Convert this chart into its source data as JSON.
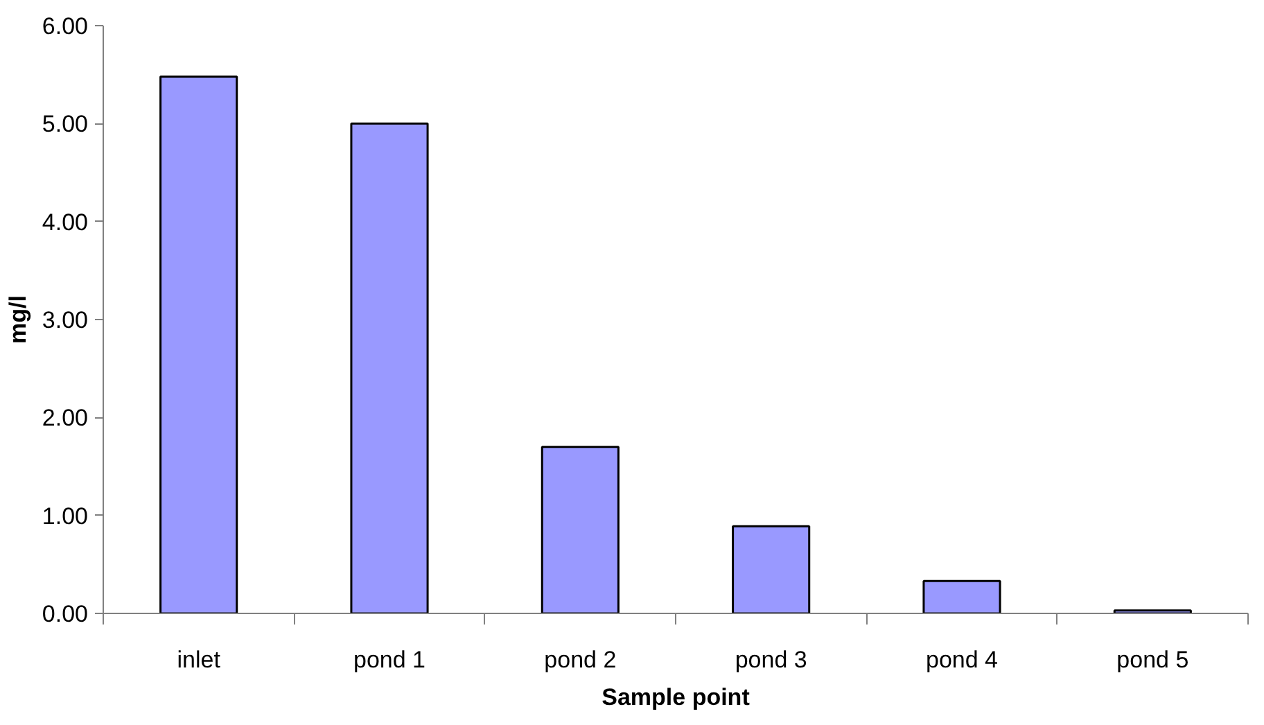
{
  "chart_data": {
    "type": "bar",
    "xlabel": "Sample point",
    "ylabel": "mg/l",
    "categories": [
      "inlet",
      "pond 1",
      "pond 2",
      "pond 3",
      "pond 4",
      "pond 5"
    ],
    "values": [
      5.48,
      5.0,
      1.7,
      0.89,
      0.33,
      0.03
    ],
    "color": "#9999ff",
    "ylim": [
      0,
      6
    ],
    "yticks": [
      {
        "value": 0,
        "label": "0.00"
      },
      {
        "value": 1,
        "label": "1.00"
      },
      {
        "value": 2,
        "label": "2.00"
      },
      {
        "value": 3,
        "label": "3.00"
      },
      {
        "value": 4,
        "label": "4.00"
      },
      {
        "value": 5,
        "label": "5.00"
      },
      {
        "value": 6,
        "label": "6.00"
      }
    ],
    "grid": false
  }
}
